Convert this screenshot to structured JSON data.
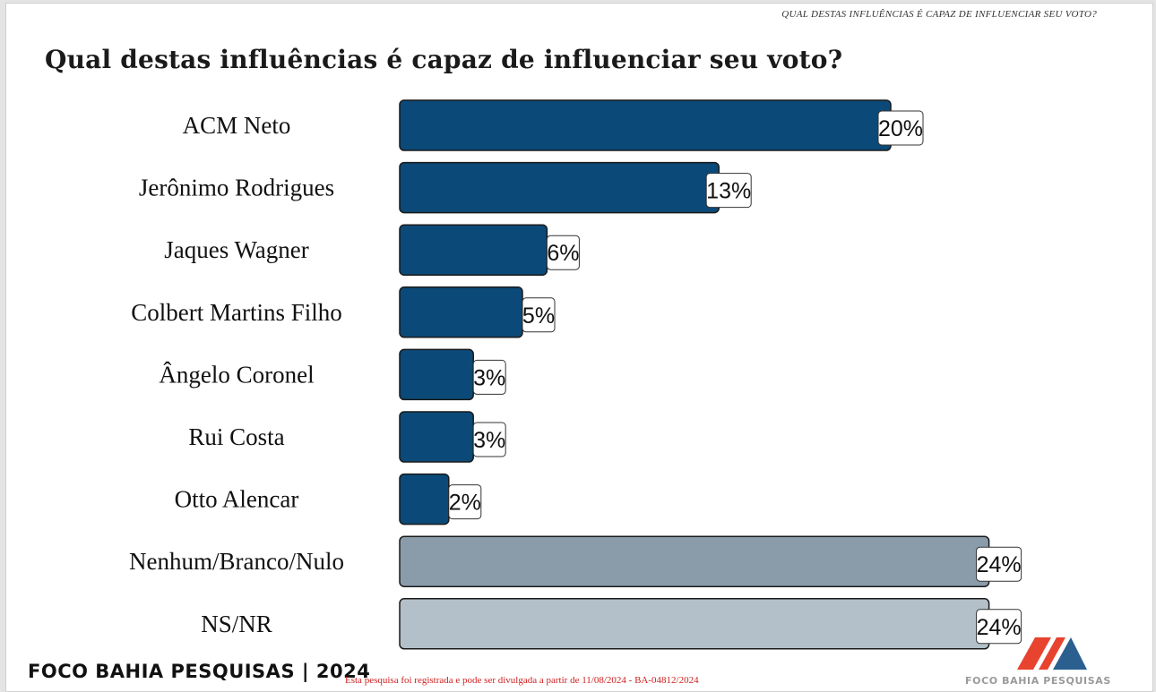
{
  "header": {
    "note": "QUAL DESTAS INFLUÊNCIAS É CAPAZ DE INFLUENCIAR SEU VOTO?"
  },
  "chart_data": {
    "type": "bar",
    "orientation": "horizontal",
    "title": "Qual destas influências é capaz de influenciar seu voto?",
    "categories": [
      "ACM Neto",
      "Jerônimo Rodrigues",
      "Jaques Wagner",
      "Colbert Martins Filho",
      "Ângelo Coronel",
      "Rui Costa",
      "Otto Alencar",
      "Nenhum/Branco/Nulo",
      "NS/NR"
    ],
    "values": [
      20,
      13,
      6,
      5,
      3,
      3,
      2,
      24,
      24
    ],
    "value_labels": [
      "20%",
      "13%",
      "6%",
      "5%",
      "3%",
      "3%",
      "2%",
      "24%",
      "24%"
    ],
    "bar_colors": [
      "#0b4a78",
      "#0b4a78",
      "#0b4a78",
      "#0b4a78",
      "#0b4a78",
      "#0b4a78",
      "#0b4a78",
      "#8a9caa",
      "#b3c0c9"
    ],
    "xlim": [
      0,
      25
    ],
    "grid": false,
    "legend": "none"
  },
  "footer": {
    "brand": "FOCO BAHIA PESQUISAS | 2024",
    "disclaimer": "Esta pesquisa foi registrada e pode ser divulgada a partir de 11/08/2024 - BA-04812/2024",
    "logo_text": "FOCO BAHIA PESQUISAS",
    "logo_colors": [
      "#e8432e",
      "#2a5f8f"
    ]
  }
}
